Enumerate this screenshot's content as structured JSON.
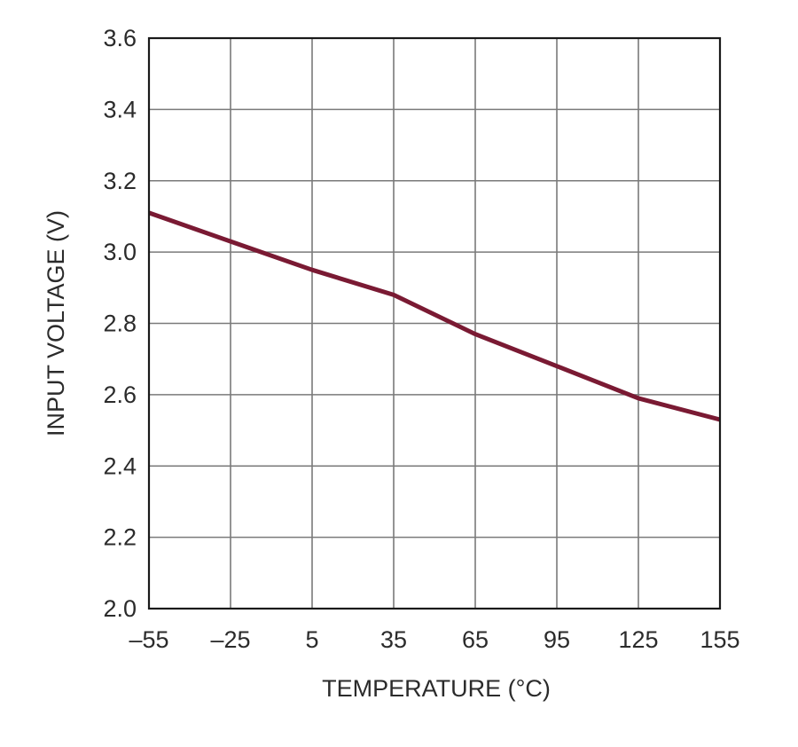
{
  "chart_data": {
    "type": "line",
    "xlabel": "TEMPERATURE (°C)",
    "ylabel": "INPUT VOLTAGE (V)",
    "xlim": [
      -55,
      155
    ],
    "ylim": [
      2.0,
      3.6
    ],
    "x_ticks": [
      "–55",
      "–25",
      "5",
      "35",
      "65",
      "95",
      "125",
      "155"
    ],
    "x_tick_values": [
      -55,
      -25,
      5,
      35,
      65,
      95,
      125,
      155
    ],
    "y_ticks": [
      "2.0",
      "2.2",
      "2.4",
      "2.6",
      "2.8",
      "3.0",
      "3.2",
      "3.4",
      "3.6"
    ],
    "y_tick_values": [
      2.0,
      2.2,
      2.4,
      2.6,
      2.8,
      3.0,
      3.2,
      3.4,
      3.6
    ],
    "grid": true,
    "series": [
      {
        "color": "#7a1a33",
        "x": [
          -55,
          -25,
          5,
          35,
          65,
          95,
          125,
          155
        ],
        "y": [
          3.11,
          3.03,
          2.95,
          2.88,
          2.77,
          2.68,
          2.59,
          2.53
        ]
      }
    ]
  }
}
